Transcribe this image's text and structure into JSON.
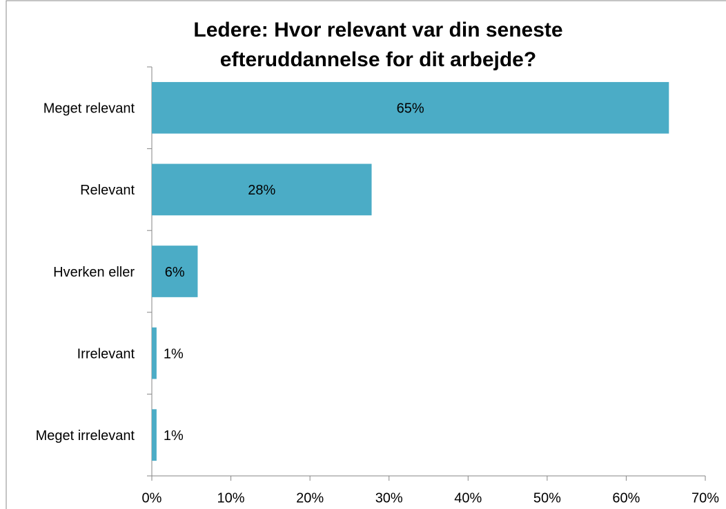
{
  "chart_data": {
    "type": "barh",
    "title": "Ledere: Hvor relevant var din seneste efteruddannelse for dit arbejde?",
    "categories": [
      "Meget relevant",
      "Relevant",
      "Hverken eller",
      "Irrelevant",
      "Meget irrelevant"
    ],
    "values": [
      65.4,
      27.8,
      5.8,
      0.6,
      0.6
    ],
    "value_labels": [
      "65%",
      "28%",
      "6%",
      "1%",
      "1%"
    ],
    "color": "#4bacc6",
    "xlim": [
      0,
      70
    ],
    "xticks": [
      {
        "value": 0,
        "label": "0%"
      },
      {
        "value": 10,
        "label": "10%"
      },
      {
        "value": 20,
        "label": "20%"
      },
      {
        "value": 30,
        "label": "30%"
      },
      {
        "value": 40,
        "label": "40%"
      },
      {
        "value": 50,
        "label": "50%"
      },
      {
        "value": 60,
        "label": "60%"
      },
      {
        "value": 70,
        "label": "70%"
      }
    ],
    "grid": false
  }
}
